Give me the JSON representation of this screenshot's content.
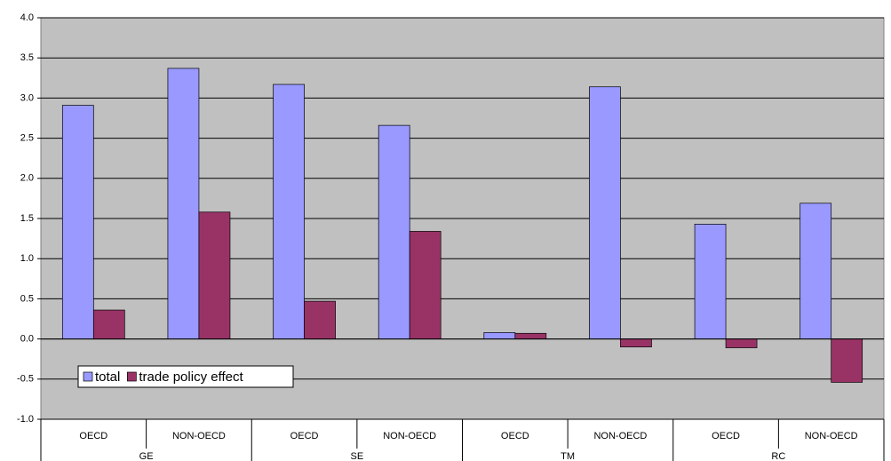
{
  "chart_data": {
    "type": "bar",
    "groups": [
      "GE",
      "SE",
      "TM",
      "RC"
    ],
    "categories": [
      "OECD",
      "NON-OECD",
      "OECD",
      "NON-OECD",
      "OECD",
      "NON-OECD",
      "OECD",
      "NON-OECD"
    ],
    "series": [
      {
        "name": "total",
        "color": "#9999ff",
        "values": [
          2.91,
          3.37,
          3.17,
          2.66,
          0.08,
          3.14,
          1.43,
          1.69
        ]
      },
      {
        "name": "trade policy effect",
        "color": "#993366",
        "values": [
          0.36,
          1.58,
          0.47,
          1.34,
          0.07,
          -0.1,
          -0.11,
          -0.54
        ]
      }
    ],
    "ylim": [
      -1.0,
      4.0
    ],
    "yticks": [
      {
        "value": -1.0,
        "label": "-1.0"
      },
      {
        "value": -0.5,
        "label": "-0.5"
      },
      {
        "value": 0.0,
        "label": "0.0"
      },
      {
        "value": 0.5,
        "label": "0.5"
      },
      {
        "value": 1.0,
        "label": "1.0"
      },
      {
        "value": 1.5,
        "label": "1.5"
      },
      {
        "value": 2.0,
        "label": "2.0"
      },
      {
        "value": 2.5,
        "label": "2.5"
      },
      {
        "value": 3.0,
        "label": "3.0"
      },
      {
        "value": 3.5,
        "label": "3.5"
      },
      {
        "value": 4.0,
        "label": "4.0"
      }
    ],
    "grid": true,
    "legend": "lower-left"
  }
}
